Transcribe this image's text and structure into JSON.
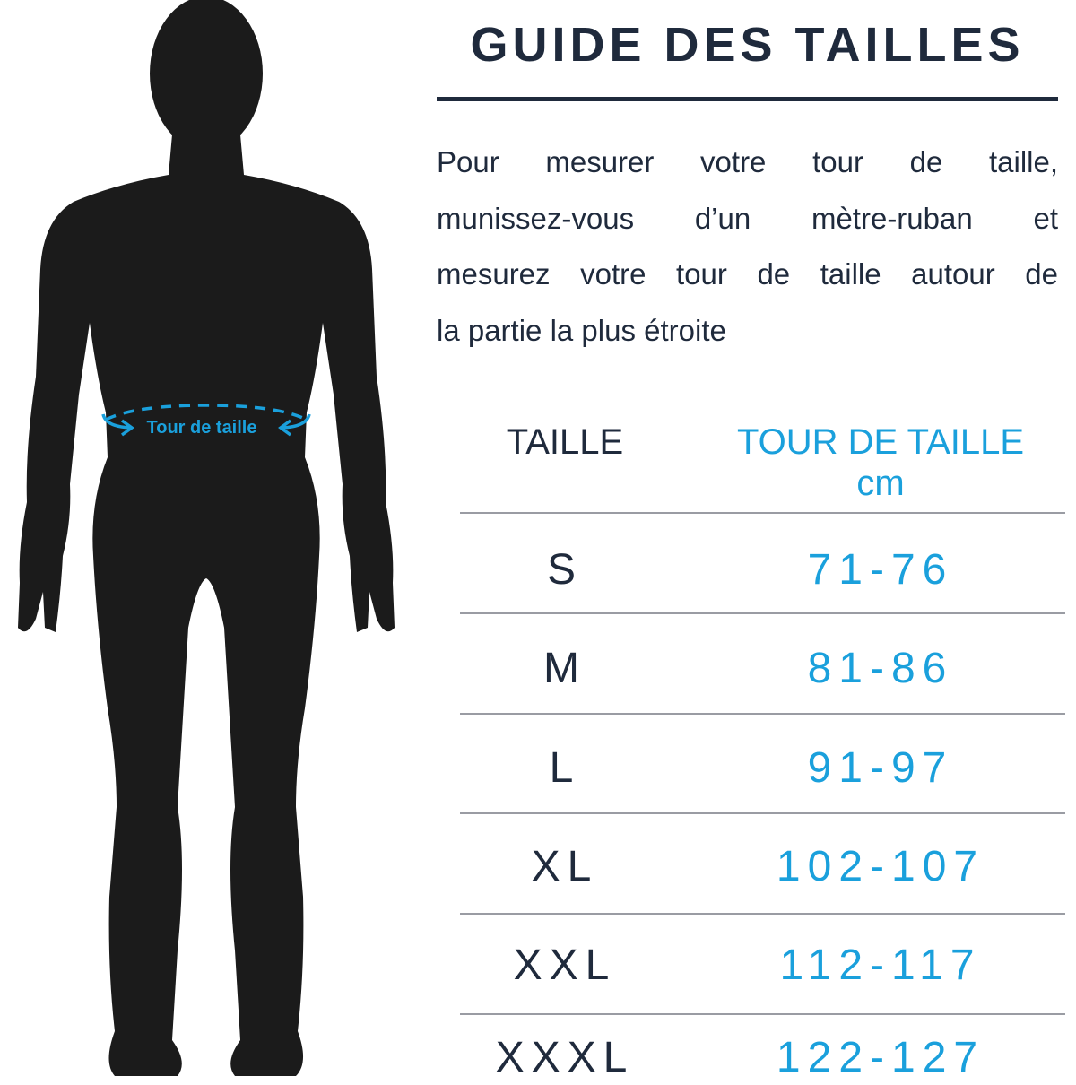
{
  "title": "GUIDE DES TAILLES",
  "instructions": {
    "lines": [
      "Pour mesurer votre tour de taille,",
      "munissez-vous d’un mètre-ruban et",
      "mesurez votre tour de taille autour de",
      "la partie la plus étroite"
    ]
  },
  "figure": {
    "waist_label": "Tour de taille",
    "icons": [
      "male-silhouette",
      "measuring-arrows-icon"
    ]
  },
  "table": {
    "headers": {
      "size": "TAILLE",
      "waist": "TOUR DE TAILLE",
      "unit": "cm"
    },
    "rows": [
      {
        "size": "S",
        "waist": "71-76"
      },
      {
        "size": "M",
        "waist": "81-86"
      },
      {
        "size": "L",
        "waist": "91-97"
      },
      {
        "size": "XL",
        "waist": "102-107"
      },
      {
        "size": "XXL",
        "waist": "112-117"
      },
      {
        "size": "XXXL",
        "waist": "122-127"
      }
    ]
  },
  "colors": {
    "text_dark": "#1f2a3c",
    "accent_blue": "#1aa0dc",
    "silhouette": "#1b1b1b",
    "divider": "#9a9ca3"
  }
}
